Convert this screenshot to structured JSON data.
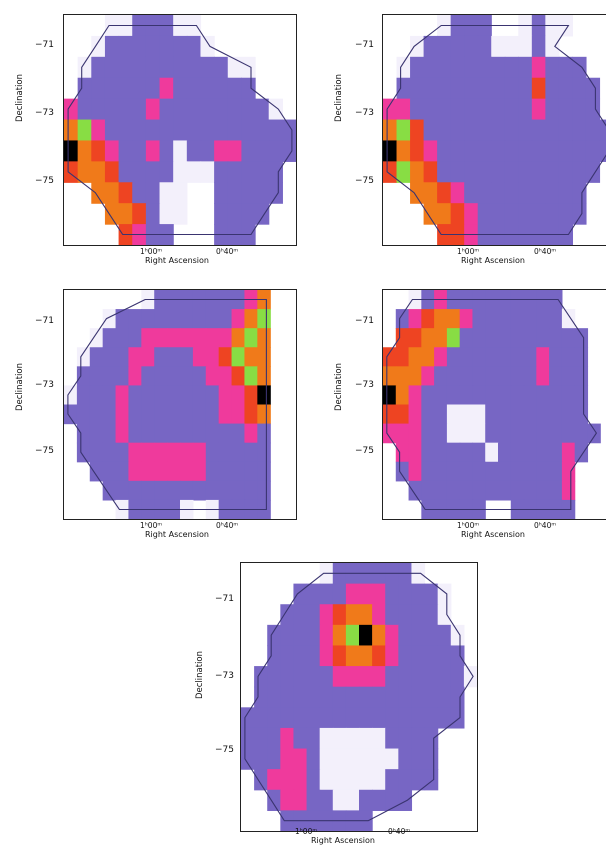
{
  "colors": {
    "low": "#f3f0fb",
    "base": "#7766c4",
    "mid": "#6c5fbd",
    "pink": "#ef3a9c",
    "red": "#ee4422",
    "orange": "#f07a1a",
    "green": "#88dd44",
    "peak": "#000000",
    "contour": "#3a3470"
  },
  "chart_data": [
    {
      "type": "heatmap",
      "xlabel": "Right Ascension",
      "ylabel": "Declination",
      "xticklabels": [
        "1ʰ00ᵐ",
        "0ʰ40ᵐ"
      ],
      "yticklabels": [
        "−71",
        "−73",
        "−75"
      ],
      "rows": [
        "   1122211      ",
        "  122222221     ",
        " 1222222222211  ",
        " 2222223222222  ",
        "3222223222222221",
        "56322222222222222",
        "95432232122332222",
        "7554222211122222",
        "  5542211  22222",
        "   554211  2222 ",
        "    4322   222  "
      ]
    },
    {
      "type": "heatmap",
      "xlabel": "Right Ascension",
      "ylabel": "Declination",
      "xticklabels": [
        "1ʰ00ᵐ",
        "0ʰ40ᵐ"
      ],
      "yticklabels": [
        "−71",
        "−73",
        "−75"
      ],
      "rows": [
        "    1222  1211  ",
        "  12222211121   ",
        " 12222222223222 ",
        " 222222222242222",
        "3322222222232222",
        "56422222222222222",
        "95432222222222222",
        "7654222222222222",
        "  5543222222222 ",
        "   554322222222 ",
        "    4432222222  "
      ]
    },
    {
      "type": "heatmap",
      "xlabel": "Right Ascension",
      "ylabel": "Declination",
      "xticklabels": [
        "1ʰ00ᵐ",
        "0ʰ40ᵐ"
      ],
      "yticklabels": [
        "−71",
        "−73",
        "−75"
      ],
      "rows": [
        "      1222222235  ",
        "   1222222222356  ",
        "  12223333333565  ",
        " 122233222334655  ",
        " 222232222233465  ",
        "1222322222223349  ",
        "2222322222223345  ",
        " 222322222222232  ",
        " 222233333322222  ",
        "  22233333322222  ",
        "   2222222222222  ",
        "    122221 12222  "
      ]
    },
    {
      "type": "heatmap",
      "xlabel": "Right Ascension",
      "ylabel": "Declination",
      "xticklabels": [
        "1ʰ00ᵐ",
        "0ʰ40ᵐ"
      ],
      "yticklabels": [
        "−71",
        "−73",
        "−75"
      ],
      "rows": [
        "  123222222222    ",
        " 23455322222221   ",
        " 445562222222222  ",
        "4455322222223222  ",
        "5553222222223222  ",
        "9532222222222222  ",
        "4432211122222222  ",
        "33322111222222222 ",
        " 332222212222232  ",
        " 23222222222223   ",
        "  2222222222223   ",
        "   22222  22222   "
      ]
    },
    {
      "type": "heatmap",
      "xlabel": "Right Ascension",
      "ylabel": "Declination",
      "xticklabels": [
        "1ʰ00ᵐ",
        "0ʰ40ᵐ"
      ],
      "yticklabels": [
        "−71",
        "−73",
        "−75"
      ],
      "rows": [
        "      12222221    ",
        "    222233322221  ",
        "   2223455322221  ",
        "  222235695322221 ",
        "  222234554322222 ",
        " 22222233332222221",
        " 2222222222222222 ",
        "22222222222222222 ",
        "222322111112222   ",
        "222332111111222   ",
        " 23332111112222   ",
        "  23322112222     ",
        "   2222222        "
      ]
    }
  ]
}
